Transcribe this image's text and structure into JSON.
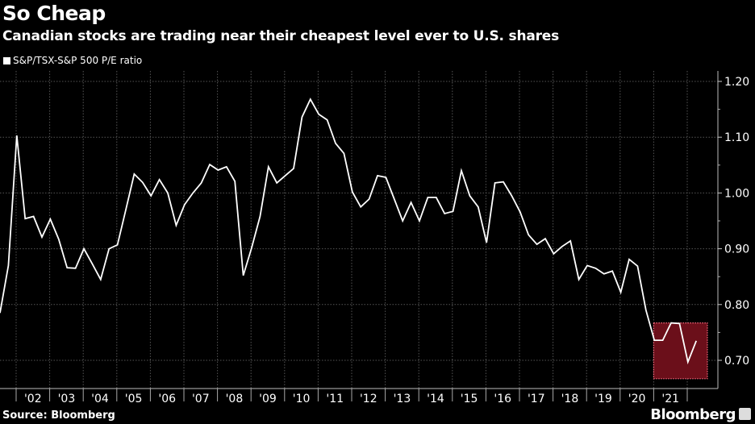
{
  "chart_data": {
    "type": "line",
    "title": "So Cheap",
    "subtitle": "Canadian stocks are trading near their cheapest level ever to U.S. shares",
    "xlabel": "",
    "ylabel": "",
    "legend": {
      "label": "S&P/TSX-S&P 500 P/E ratio",
      "placement": "top-left"
    },
    "ylim": [
      0.65,
      1.22
    ],
    "xlim": [
      2001.5,
      2022.7
    ],
    "grid": true,
    "y_ticks": [
      {
        "value": 0.7,
        "label": "0.70"
      },
      {
        "value": 0.8,
        "label": "0.80"
      },
      {
        "value": 0.9,
        "label": "0.90"
      },
      {
        "value": 1.0,
        "label": "1.00"
      },
      {
        "value": 1.1,
        "label": "1.10"
      },
      {
        "value": 1.2,
        "label": "1.20"
      }
    ],
    "x_ticks": [
      "'02",
      "'03",
      "'04",
      "'05",
      "'06",
      "'07",
      "'08",
      "'09",
      "'10",
      "'11",
      "'12",
      "'13",
      "'14",
      "'15",
      "'16",
      "'17",
      "'18",
      "'19",
      "'20",
      "'21"
    ],
    "x_tick_start_year": 2002,
    "series": [
      {
        "name": "S&P/TSX-S&P 500 P/E ratio",
        "color": "#ffffff",
        "x_start": 2001.52,
        "x_step": 0.25,
        "values": [
          0.785,
          0.87,
          1.103,
          0.954,
          0.958,
          0.921,
          0.953,
          0.917,
          0.866,
          0.865,
          0.9,
          0.873,
          0.845,
          0.9,
          0.907,
          0.97,
          1.034,
          1.019,
          0.995,
          1.024,
          1.0,
          0.942,
          0.979,
          1.0,
          1.018,
          1.051,
          1.041,
          1.047,
          1.021,
          0.852,
          0.902,
          0.958,
          1.047,
          1.018,
          1.031,
          1.044,
          1.136,
          1.168,
          1.141,
          1.131,
          1.089,
          1.071,
          1.002,
          0.975,
          0.989,
          1.031,
          1.028,
          0.989,
          0.95,
          0.983,
          0.95,
          0.992,
          0.992,
          0.963,
          0.967,
          1.04,
          0.995,
          0.975,
          0.911,
          1.018,
          1.02,
          0.995,
          0.966,
          0.925,
          0.908,
          0.918,
          0.891,
          0.904,
          0.914,
          0.845,
          0.87,
          0.865,
          0.855,
          0.86,
          0.822,
          0.881,
          0.869,
          0.79,
          0.736,
          0.736,
          0.767,
          0.766,
          0.697,
          0.735
        ]
      }
    ],
    "highlight": {
      "x_range": [
        2021.0,
        2022.6
      ],
      "y_range": [
        0.667,
        0.767
      ],
      "color": "#6b0f1a",
      "border_color": "#ff6b81"
    }
  },
  "source": "Source: Bloomberg",
  "brand": "Bloomberg"
}
